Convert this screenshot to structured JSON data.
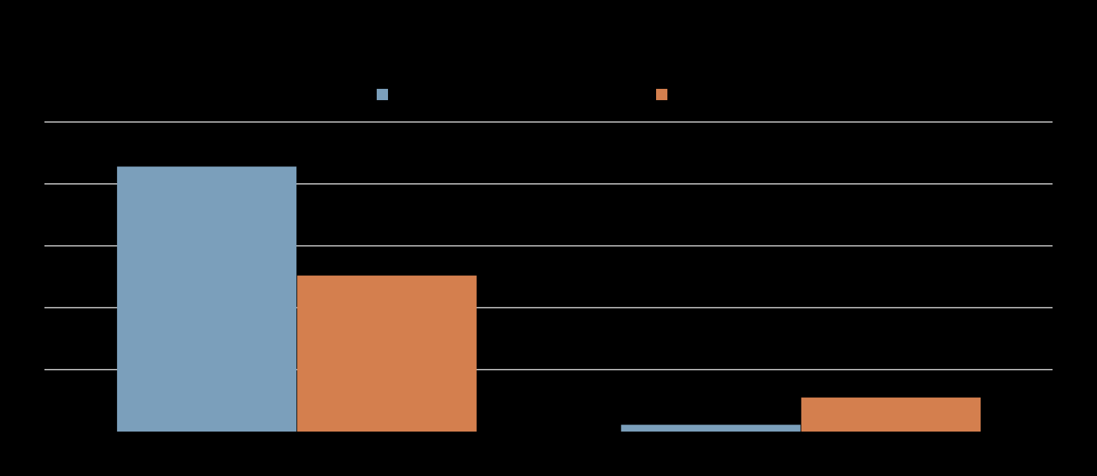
{
  "chart_data": {
    "type": "bar",
    "categories": [
      null,
      null
    ],
    "series": [
      {
        "color": "#7b9fbb",
        "values": [
          4.28,
          0.11
        ]
      },
      {
        "color": "#d47f4e",
        "values": [
          2.52,
          0.55
        ]
      }
    ],
    "ylim": [
      0,
      5
    ],
    "yticks": [
      1,
      2,
      3,
      4,
      5
    ],
    "grid": true
  }
}
